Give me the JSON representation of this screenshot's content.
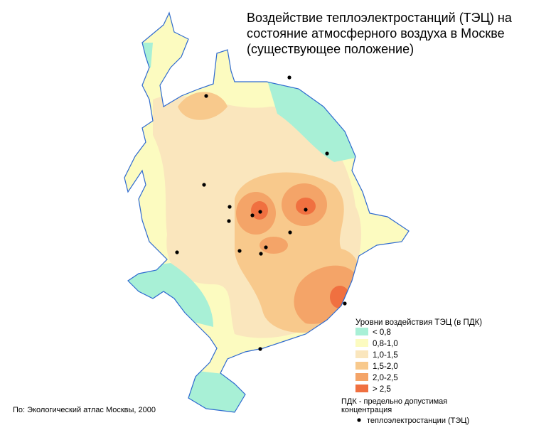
{
  "title": [
    "Воздействие теплоэлектростанций (ТЭЦ) на",
    "состояние атмосферного воздуха в Москве",
    "(существующее положение)"
  ],
  "legend": {
    "title": "Уровни воздействия ТЭЦ (в ПДК)",
    "items": [
      {
        "label": "< 0,8",
        "color": "#a8f0d6"
      },
      {
        "label": "0,8-1,0",
        "color": "#fcfbc0"
      },
      {
        "label": "1,0-1,5",
        "color": "#fae6bd"
      },
      {
        "label": "1,5-2,0",
        "color": "#f8c98c"
      },
      {
        "label": "2,0-2,5",
        "color": "#f4a468"
      },
      {
        "label": "> 2,5",
        "color": "#f07040"
      }
    ]
  },
  "note": [
    "ПДК - предельно допустимая",
    "концентрация"
  ],
  "plants_label": "теплоэлектростанции (ТЭЦ)",
  "source": "По: Экологический атлас Москвы, 2000"
}
